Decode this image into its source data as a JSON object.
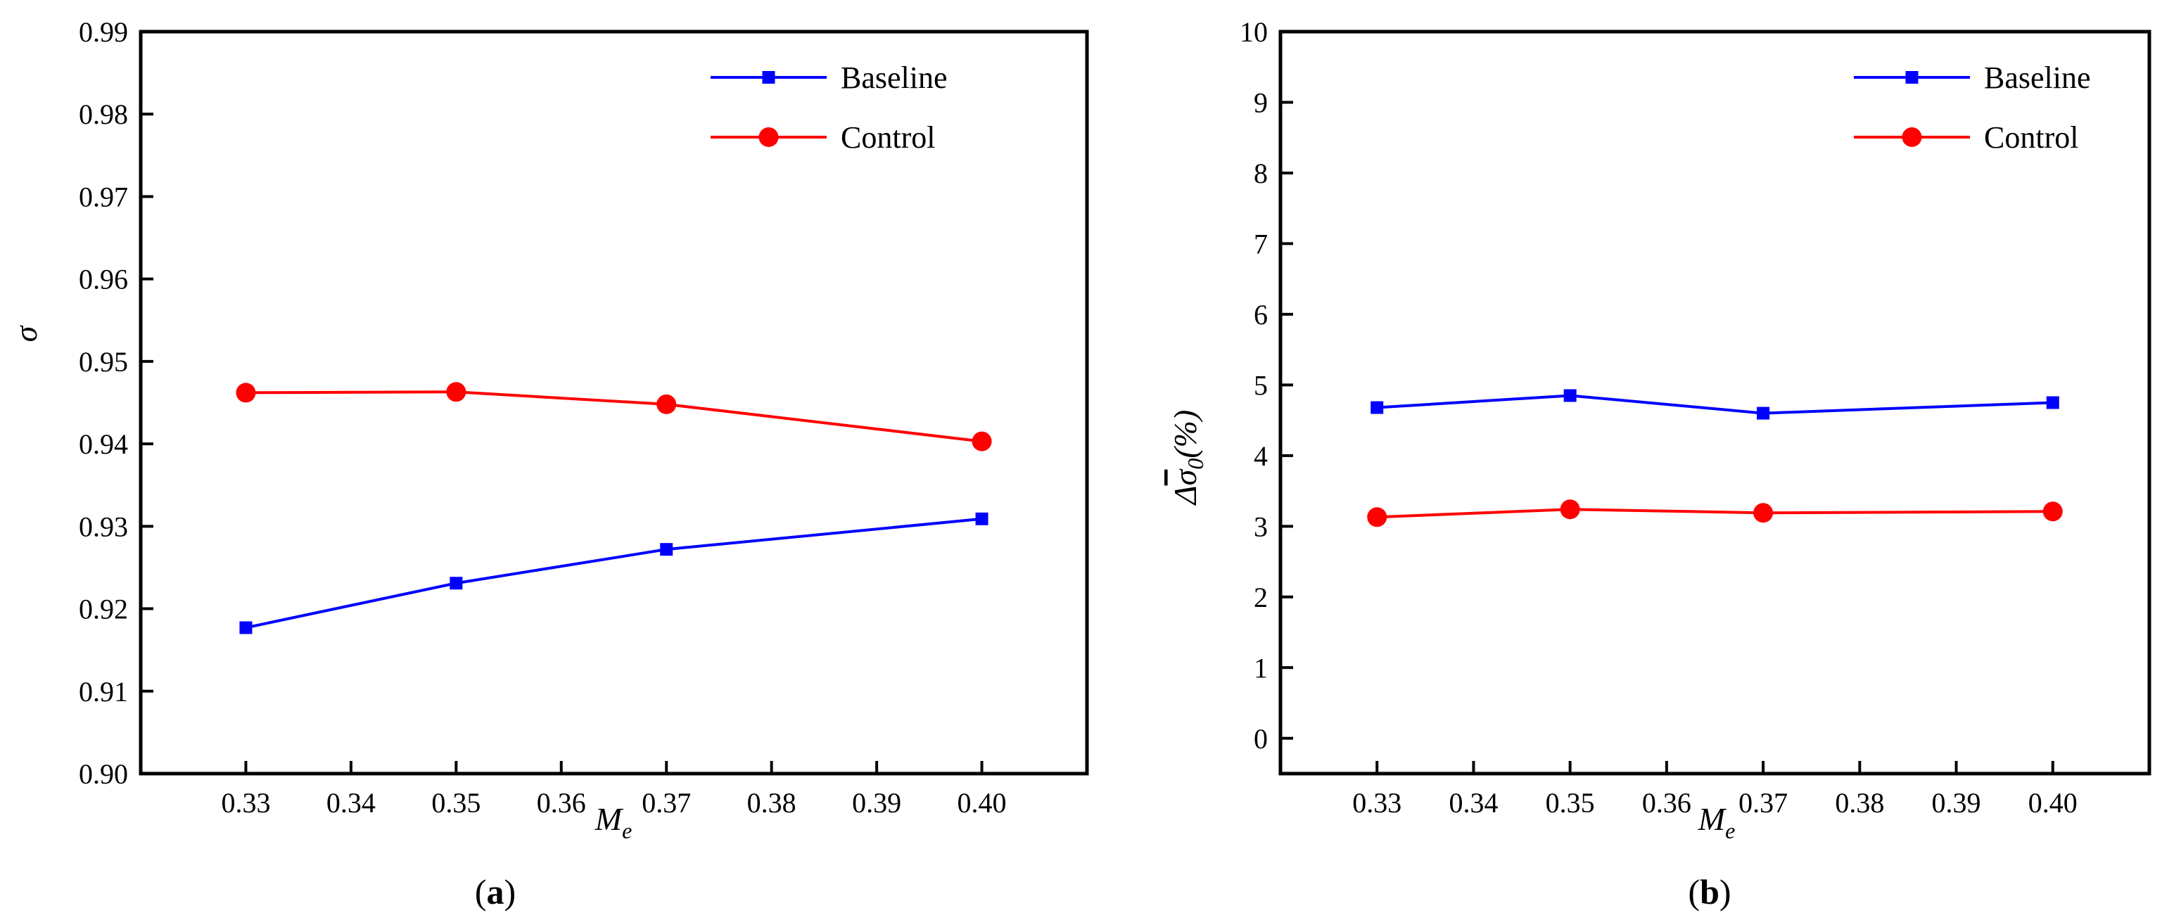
{
  "chart_data": [
    {
      "type": "line",
      "panel": "a",
      "caption_open": "(",
      "caption_letter": "a",
      "caption_close": ")",
      "xlabel": "M",
      "xlabel_sub": "e",
      "ylabel": "σ",
      "xlim": [
        0.32,
        0.41
      ],
      "ylim": [
        0.9,
        0.99
      ],
      "x_ticks": [
        0.33,
        0.34,
        0.35,
        0.36,
        0.37,
        0.38,
        0.39,
        0.4
      ],
      "x_tick_labels": [
        "0.33",
        "0.34",
        "0.35",
        "0.36",
        "0.37",
        "0.38",
        "0.39",
        "0.40"
      ],
      "y_ticks": [
        0.9,
        0.91,
        0.92,
        0.93,
        0.94,
        0.95,
        0.96,
        0.97,
        0.98,
        0.99
      ],
      "y_tick_labels": [
        "0.90",
        "0.91",
        "0.92",
        "0.93",
        "0.94",
        "0.95",
        "0.96",
        "0.97",
        "0.98",
        "0.99"
      ],
      "legend_position": "top-right",
      "series": [
        {
          "name": "Baseline",
          "color": "#0000ff",
          "marker": "square",
          "x": [
            0.33,
            0.35,
            0.37,
            0.4
          ],
          "values": [
            0.9177,
            0.9231,
            0.9272,
            0.9309
          ]
        },
        {
          "name": "Control",
          "color": "#ff0000",
          "marker": "circle",
          "x": [
            0.33,
            0.35,
            0.37,
            0.4
          ],
          "values": [
            0.9462,
            0.9463,
            0.9448,
            0.9403
          ]
        }
      ]
    },
    {
      "type": "line",
      "panel": "b",
      "caption_open": "(",
      "caption_letter": "b",
      "caption_close": ")",
      "xlabel": "M",
      "xlabel_sub": "e",
      "ylabel_prefix": "Δ",
      "ylabel_main": "σ",
      "ylabel_sub": "0",
      "ylabel_suffix": "(%)",
      "xlim": [
        0.32,
        0.41
      ],
      "ylim": [
        -0.5,
        10
      ],
      "x_ticks": [
        0.33,
        0.34,
        0.35,
        0.36,
        0.37,
        0.38,
        0.39,
        0.4
      ],
      "x_tick_labels": [
        "0.33",
        "0.34",
        "0.35",
        "0.36",
        "0.37",
        "0.38",
        "0.39",
        "0.40"
      ],
      "y_ticks": [
        0,
        1,
        2,
        3,
        4,
        5,
        6,
        7,
        8,
        9,
        10
      ],
      "y_tick_labels": [
        "0",
        "1",
        "2",
        "3",
        "4",
        "5",
        "6",
        "7",
        "8",
        "9",
        "10"
      ],
      "legend_position": "top-right",
      "series": [
        {
          "name": "Baseline",
          "color": "#0000ff",
          "marker": "square",
          "x": [
            0.33,
            0.35,
            0.37,
            0.4
          ],
          "values": [
            4.68,
            4.85,
            4.6,
            4.75
          ]
        },
        {
          "name": "Control",
          "color": "#ff0000",
          "marker": "circle",
          "x": [
            0.33,
            0.35,
            0.37,
            0.4
          ],
          "values": [
            3.13,
            3.24,
            3.19,
            3.21
          ]
        }
      ]
    }
  ]
}
